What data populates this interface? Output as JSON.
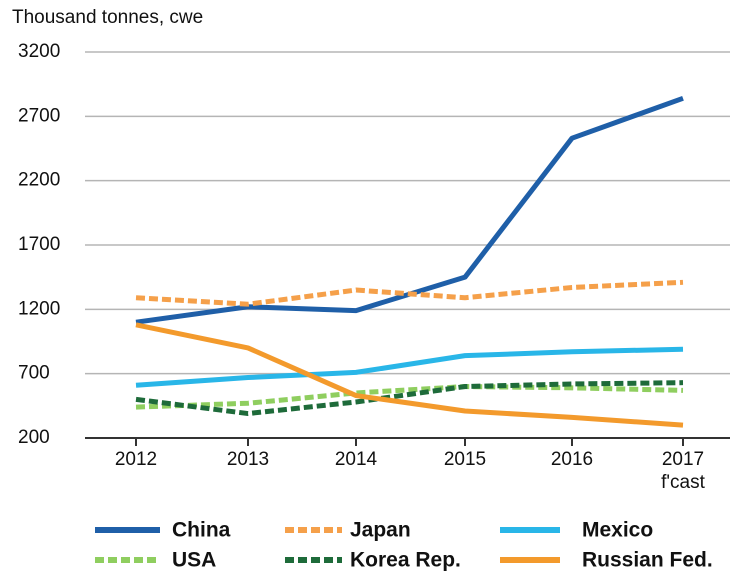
{
  "chart_data": {
    "type": "line",
    "y_axis_label": "Thousand tonnes, cwe",
    "categories": [
      "2012",
      "2013",
      "2014",
      "2015",
      "2016",
      "2017"
    ],
    "annotation": "f'cast",
    "ylim": [
      200,
      3200
    ],
    "yticks": [
      200,
      700,
      1200,
      1700,
      2200,
      2700,
      3200
    ],
    "grid": true,
    "series": [
      {
        "name": "China",
        "color": "#1f5fa8",
        "style": "solid",
        "values": [
          1100,
          1220,
          1190,
          1450,
          2530,
          2840
        ]
      },
      {
        "name": "Japan",
        "color": "#f5a04a",
        "style": "dashed",
        "values": [
          1290,
          1240,
          1350,
          1290,
          1370,
          1410
        ]
      },
      {
        "name": "Mexico",
        "color": "#29b6e8",
        "style": "solid",
        "values": [
          610,
          670,
          710,
          840,
          870,
          890
        ]
      },
      {
        "name": "USA",
        "color": "#8fce5f",
        "style": "dashed",
        "values": [
          440,
          470,
          550,
          600,
          590,
          570
        ]
      },
      {
        "name": "Korea Rep.",
        "color": "#1e6b3a",
        "style": "dashed",
        "values": [
          500,
          390,
          480,
          600,
          620,
          630
        ]
      },
      {
        "name": "Russian Fed.",
        "color": "#f39a2c",
        "style": "solid",
        "values": [
          1080,
          900,
          530,
          410,
          360,
          300
        ]
      }
    ]
  }
}
